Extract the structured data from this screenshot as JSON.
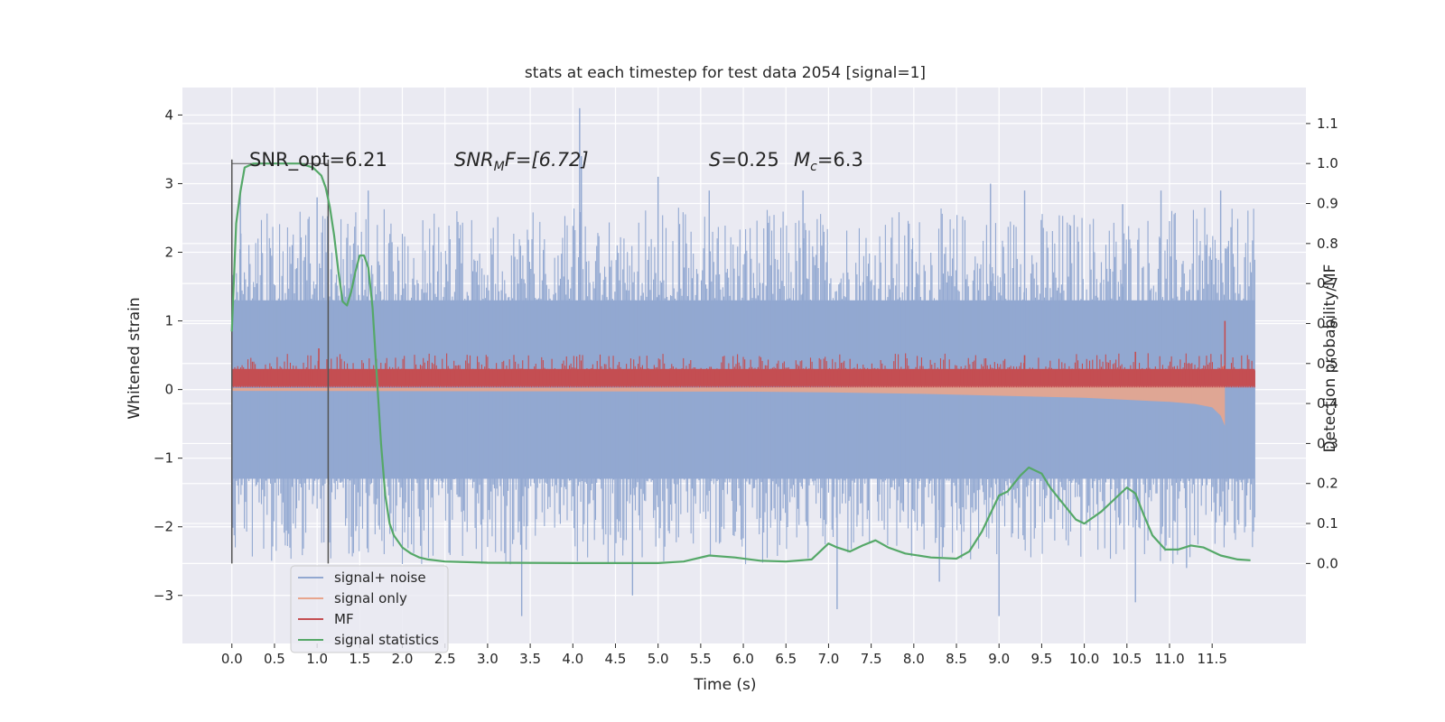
{
  "chart_data": {
    "type": "line",
    "title": "stats at each timestep for test data 2054 [signal=1]",
    "xlabel": "Time (s)",
    "ylabel_left": "Whitened strain",
    "ylabel_right": "Detection probability/MF",
    "xlim": [
      -0.58,
      12.6
    ],
    "ylim_left": [
      -3.7,
      4.4
    ],
    "ylim_right": [
      -0.2,
      1.19
    ],
    "x_ticks": [
      "0.0",
      "0.5",
      "1.0",
      "1.5",
      "2.0",
      "2.5",
      "3.0",
      "3.5",
      "4.0",
      "4.5",
      "5.0",
      "5.5",
      "6.0",
      "6.5",
      "7.0",
      "7.5",
      "8.0",
      "8.5",
      "9.0",
      "9.5",
      "10.0",
      "10.5",
      "11.0",
      "11.5"
    ],
    "y_ticks_left": [
      "4",
      "3",
      "2",
      "1",
      "0",
      "−1",
      "−2",
      "−3"
    ],
    "y_ticks_right": [
      "1.1",
      "1.0",
      "0.9",
      "0.8",
      "0.7",
      "0.6",
      "0.5",
      "0.4",
      "0.3",
      "0.2",
      "0.1",
      "0.0"
    ],
    "grid": true,
    "legend_position": "lower-left",
    "annotations": {
      "snr_opt": "SNR_opt=6.21",
      "snr_mf_prefix": "SNR",
      "snr_mf_sub": "M",
      "snr_mf_rest": "F=[6.72]",
      "s_sym": "S",
      "s_val": "=0.25",
      "mc_sym": "M",
      "mc_sub": "c",
      "mc_val": "=6.3"
    },
    "window_markers_x": [
      0.0,
      1.13
    ],
    "series": [
      {
        "name": "signal+ noise",
        "color": "#92a8d1",
        "axis": "left",
        "style": "noise-band",
        "x_range": [
          0.0,
          12.0
        ],
        "typical_range": [
          -1.3,
          1.3
        ],
        "peaks": [
          [
            0.1,
            2.9
          ],
          [
            1.0,
            2.8
          ],
          [
            1.6,
            2.9
          ],
          [
            4.08,
            4.1
          ],
          [
            4.1,
            3.4
          ],
          [
            5.0,
            3.1
          ],
          [
            5.6,
            2.9
          ],
          [
            6.7,
            2.9
          ],
          [
            8.9,
            3.0
          ],
          [
            9.3,
            2.9
          ],
          [
            10.45,
            2.7
          ],
          [
            10.9,
            2.9
          ],
          [
            11.6,
            2.9
          ],
          [
            9.0,
            -3.3
          ],
          [
            3.4,
            -3.3
          ],
          [
            7.1,
            -3.2
          ],
          [
            4.7,
            -3.0
          ],
          [
            8.3,
            -2.8
          ],
          [
            10.6,
            -3.1
          ],
          [
            11.2,
            -2.6
          ]
        ]
      },
      {
        "name": "signal only",
        "color": "#e8a58d",
        "axis": "left",
        "style": "chirp-envelope",
        "x": [
          0.0,
          6.0,
          7.0,
          8.0,
          9.0,
          10.0,
          10.5,
          11.0,
          11.3,
          11.5,
          11.6,
          11.65
        ],
        "upper": [
          0.02,
          0.03,
          0.04,
          0.06,
          0.09,
          0.12,
          0.15,
          0.18,
          0.21,
          0.25,
          0.3,
          0.38
        ],
        "lower": [
          -0.02,
          -0.03,
          -0.04,
          -0.06,
          -0.09,
          -0.12,
          -0.15,
          -0.18,
          -0.21,
          -0.26,
          -0.38,
          -0.53
        ]
      },
      {
        "name": "MF",
        "color": "#c44e52",
        "axis": "left",
        "style": "positive-band",
        "x_range": [
          0.0,
          12.0
        ],
        "typical_range": [
          0.05,
          0.4
        ],
        "peaks": [
          [
            1.02,
            0.6
          ],
          [
            9.3,
            0.5
          ],
          [
            10.6,
            0.55
          ],
          [
            11.65,
            1.0
          ]
        ]
      },
      {
        "name": "signal statistics",
        "color": "#55a868",
        "axis": "right",
        "style": "line",
        "x": [
          0.0,
          0.05,
          0.1,
          0.15,
          0.25,
          0.5,
          0.8,
          0.95,
          1.05,
          1.1,
          1.15,
          1.2,
          1.25,
          1.3,
          1.35,
          1.4,
          1.45,
          1.5,
          1.55,
          1.6,
          1.65,
          1.7,
          1.75,
          1.8,
          1.85,
          1.9,
          2.0,
          2.1,
          2.2,
          2.3,
          2.5,
          3.0,
          4.0,
          5.0,
          5.3,
          5.6,
          5.9,
          6.2,
          6.5,
          6.8,
          6.9,
          7.0,
          7.1,
          7.25,
          7.4,
          7.55,
          7.7,
          7.9,
          8.2,
          8.5,
          8.65,
          8.8,
          9.0,
          9.1,
          9.25,
          9.35,
          9.5,
          9.6,
          9.75,
          9.9,
          10.0,
          10.2,
          10.35,
          10.5,
          10.6,
          10.7,
          10.8,
          10.95,
          11.1,
          11.25,
          11.4,
          11.6,
          11.8,
          11.95
        ],
        "values": [
          0.58,
          0.85,
          0.93,
          0.99,
          1.0,
          1.0,
          1.0,
          0.99,
          0.97,
          0.94,
          0.89,
          0.82,
          0.73,
          0.655,
          0.645,
          0.68,
          0.73,
          0.77,
          0.77,
          0.74,
          0.64,
          0.47,
          0.3,
          0.17,
          0.1,
          0.07,
          0.04,
          0.025,
          0.015,
          0.01,
          0.005,
          0.002,
          0.001,
          0.001,
          0.005,
          0.02,
          0.015,
          0.007,
          0.005,
          0.01,
          0.03,
          0.05,
          0.04,
          0.03,
          0.045,
          0.058,
          0.04,
          0.025,
          0.015,
          0.012,
          0.03,
          0.08,
          0.17,
          0.18,
          0.22,
          0.24,
          0.225,
          0.19,
          0.15,
          0.11,
          0.1,
          0.13,
          0.16,
          0.19,
          0.175,
          0.12,
          0.07,
          0.035,
          0.035,
          0.045,
          0.04,
          0.02,
          0.01,
          0.008
        ]
      }
    ]
  }
}
